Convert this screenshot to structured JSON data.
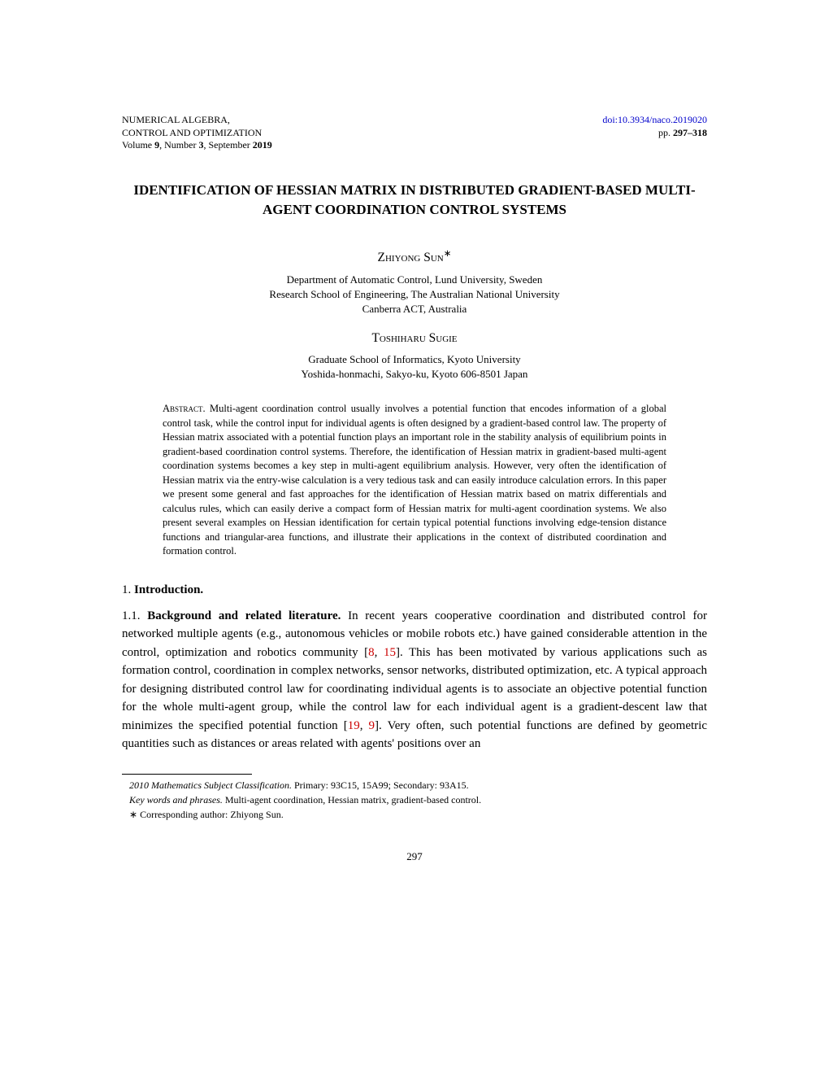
{
  "header": {
    "journal_line1": "NUMERICAL ALGEBRA,",
    "journal_line2": "CONTROL AND OPTIMIZATION",
    "volume_line": "Volume 9, Number 3, September 2019",
    "doi": "doi:10.3934/naco.2019020",
    "pages": "pp. 297–318"
  },
  "title": "IDENTIFICATION OF HESSIAN MATRIX IN DISTRIBUTED GRADIENT-BASED MULTI-AGENT COORDINATION CONTROL SYSTEMS",
  "authors": [
    {
      "name": "Zhiyong Sun",
      "marker": "∗",
      "affiliation_lines": [
        "Department of Automatic Control, Lund University, Sweden",
        "Research School of Engineering, The Australian National University",
        "Canberra ACT, Australia"
      ]
    },
    {
      "name": "Toshiharu Sugie",
      "marker": "",
      "affiliation_lines": [
        "Graduate School of Informatics, Kyoto University",
        "Yoshida-honmachi, Sakyo-ku, Kyoto 606-8501 Japan"
      ]
    }
  ],
  "abstract": {
    "label": "Abstract.",
    "text": " Multi-agent coordination control usually involves a potential function that encodes information of a global control task, while the control input for individual agents is often designed by a gradient-based control law. The property of Hessian matrix associated with a potential function plays an important role in the stability analysis of equilibrium points in gradient-based coordination control systems. Therefore, the identification of Hessian matrix in gradient-based multi-agent coordination systems becomes a key step in multi-agent equilibrium analysis. However, very often the identification of Hessian matrix via the entry-wise calculation is a very tedious task and can easily introduce calculation errors. In this paper we present some general and fast approaches for the identification of Hessian matrix based on matrix differentials and calculus rules, which can easily derive a compact form of Hessian matrix for multi-agent coordination systems. We also present several examples on Hessian identification for certain typical potential functions involving edge-tension distance functions and triangular-area functions, and illustrate their applications in the context of distributed coordination and formation control."
  },
  "sections": {
    "s1_number": "1.",
    "s1_title": "Introduction.",
    "s1_1_number": "1.1.",
    "s1_1_title": "Background and related literature.",
    "s1_1_text_part1": " In recent years cooperative coordination and distributed control for networked multiple agents (e.g., autonomous vehicles or mobile robots etc.) have gained considerable attention in the control, optimization and robotics community [",
    "ref8": "8",
    "comma1": ", ",
    "ref15": "15",
    "s1_1_text_part2": "]. This has been motivated by various applications such as formation control, coordination in complex networks, sensor networks, distributed optimization, etc. A typical approach for designing distributed control law for coordinating individual agents is to associate an objective potential function for the whole multi-agent group, while the control law for each individual agent is a gradient-descent law that minimizes the specified potential function [",
    "ref19": "19",
    "comma2": ", ",
    "ref9": "9",
    "s1_1_text_part3": "]. Very often, such potential functions are defined by geometric quantities such as distances or areas related with agents' positions over an"
  },
  "footnotes": {
    "msc_label": "2010 Mathematics Subject Classification.",
    "msc_text": " Primary: 93C15, 15A99; Secondary: 93A15.",
    "keywords_label": "Key words and phrases.",
    "keywords_text": " Multi-agent coordination, Hessian matrix, gradient-based control.",
    "corr_marker": "∗",
    "corr_text": " Corresponding author: Zhiyong Sun."
  },
  "page_number": "297",
  "colors": {
    "link_blue": "#0000cc",
    "ref_red": "#cc0000",
    "text": "#000000",
    "background": "#ffffff"
  }
}
